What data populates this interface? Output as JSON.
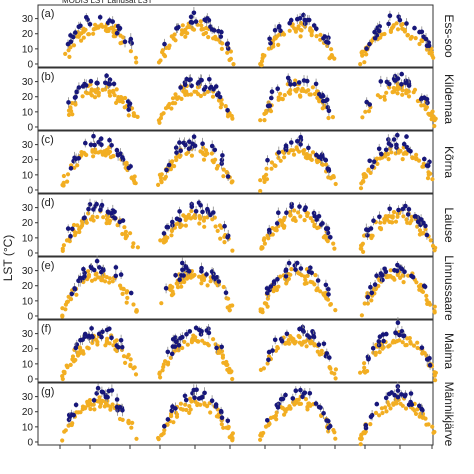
{
  "figure": {
    "ylabel": "LST (°C)",
    "legend_text": "MODIS LST    Landsat LST"
  },
  "colors": {
    "modis": "#f2ae22",
    "landsat": "#17177a",
    "errorbar": "#8a8a8a",
    "frame": "#333333"
  },
  "chart_data": {
    "type": "scatter",
    "note_series": "two series per panel: orange (MODIS) and navy (Landsat)",
    "y_ticks": [
      0,
      10,
      20,
      30
    ],
    "ylim": [
      -2,
      39
    ],
    "x_groups": 4,
    "panels": [
      {
        "label": "(a)",
        "site": "Ess-soo"
      },
      {
        "label": "(b)",
        "site": "Kildemaa"
      },
      {
        "label": "(c)",
        "site": "Kõrna"
      },
      {
        "label": "(d)",
        "site": "Laiuse"
      },
      {
        "label": "(e)",
        "site": "Linnussaare"
      },
      {
        "label": "(f)",
        "site": "Maima"
      },
      {
        "label": "(g)",
        "site": "Männikjärve"
      }
    ],
    "seasonal_peak": [
      24,
      25,
      26,
      24,
      27,
      26,
      26
    ],
    "seasonal_min": [
      2,
      3,
      3,
      2,
      2,
      2,
      2
    ]
  }
}
